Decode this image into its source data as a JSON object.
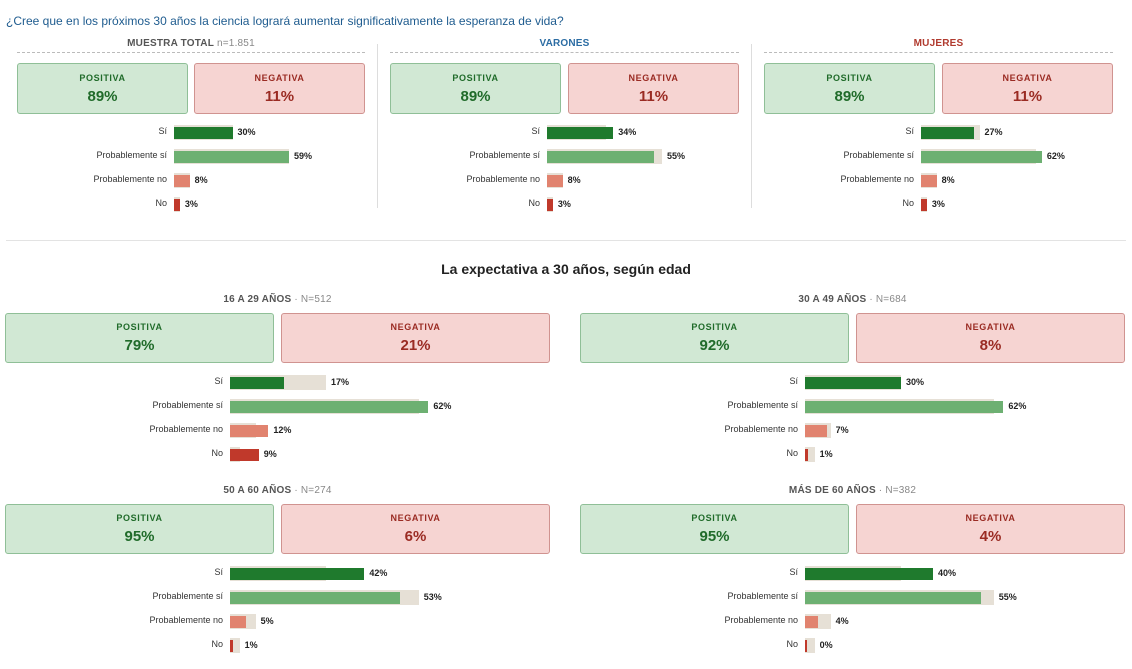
{
  "question": "¿Cree que en los próximos 30 años la ciencia logrará aumentar significativamente la esperanza de vida?",
  "section_title": "La expectativa a 30 años, según edad",
  "labels": {
    "positive": "POSITIVA",
    "negative": "NEGATIVA",
    "answers": [
      "Sí",
      "Probablemente sí",
      "Probablemente no",
      "No"
    ]
  },
  "colors": {
    "si": "#1f7a2d",
    "probablemente_si": "#6db072",
    "probablemente_no": "#e1836f",
    "no": "#c0392b",
    "reference_bar": "#e6e0d6",
    "question_text": "#1f5c8f"
  },
  "chart_data": [
    {
      "type": "bar",
      "title": "MUESTRA TOTAL",
      "n": "n=1.851",
      "title_color": "#555555",
      "summary": {
        "positive": "89%",
        "negative": "11%"
      },
      "categories": [
        "Sí",
        "Probablemente sí",
        "Probablemente no",
        "No"
      ],
      "values": [
        30,
        59,
        8,
        3
      ],
      "value_labels": [
        "30%",
        "59%",
        "8%",
        "3%"
      ],
      "reference_values": [
        30,
        59,
        8,
        3
      ]
    },
    {
      "type": "bar",
      "title": "VARONES",
      "n": "",
      "title_color": "#2b6ca3",
      "summary": {
        "positive": "89%",
        "negative": "11%"
      },
      "categories": [
        "Sí",
        "Probablemente sí",
        "Probablemente no",
        "No"
      ],
      "values": [
        34,
        55,
        8,
        3
      ],
      "value_labels": [
        "34%",
        "55%",
        "8%",
        "3%"
      ],
      "reference_values": [
        30,
        59,
        8,
        3
      ]
    },
    {
      "type": "bar",
      "title": "MUJERES",
      "n": "",
      "title_color": "#b03a2e",
      "summary": {
        "positive": "89%",
        "negative": "11%"
      },
      "categories": [
        "Sí",
        "Probablemente sí",
        "Probablemente no",
        "No"
      ],
      "values": [
        27,
        62,
        8,
        3
      ],
      "value_labels": [
        "27%",
        "62%",
        "8%",
        "3%"
      ],
      "reference_values": [
        30,
        59,
        8,
        3
      ]
    },
    {
      "type": "bar",
      "title": "16 A 29 AÑOS",
      "n": "N=512",
      "title_color": "#555555",
      "summary": {
        "positive": "79%",
        "negative": "21%"
      },
      "categories": [
        "Sí",
        "Probablemente sí",
        "Probablemente no",
        "No"
      ],
      "values": [
        17,
        62,
        12,
        9
      ],
      "value_labels": [
        "17%",
        "62%",
        "12%",
        "9%"
      ],
      "reference_values": [
        30,
        59,
        8,
        3
      ]
    },
    {
      "type": "bar",
      "title": "30 A 49 AÑOS",
      "n": "N=684",
      "title_color": "#555555",
      "summary": {
        "positive": "92%",
        "negative": "8%"
      },
      "categories": [
        "Sí",
        "Probablemente sí",
        "Probablemente no",
        "No"
      ],
      "values": [
        30,
        62,
        7,
        1
      ],
      "value_labels": [
        "30%",
        "62%",
        "7%",
        "1%"
      ],
      "reference_values": [
        30,
        59,
        8,
        3
      ]
    },
    {
      "type": "bar",
      "title": "50 A 60 AÑOS",
      "n": "N=274",
      "title_color": "#555555",
      "summary": {
        "positive": "95%",
        "negative": "6%"
      },
      "categories": [
        "Sí",
        "Probablemente sí",
        "Probablemente no",
        "No"
      ],
      "values": [
        42,
        53,
        5,
        1
      ],
      "value_labels": [
        "42%",
        "53%",
        "5%",
        "1%"
      ],
      "reference_values": [
        30,
        59,
        8,
        3
      ]
    },
    {
      "type": "bar",
      "title": "MÁS DE 60 AÑOS",
      "n": "N=382",
      "title_color": "#555555",
      "summary": {
        "positive": "95%",
        "negative": "4%"
      },
      "categories": [
        "Sí",
        "Probablemente sí",
        "Probablemente no",
        "No"
      ],
      "values": [
        40,
        55,
        4,
        0
      ],
      "value_labels": [
        "40%",
        "55%",
        "4%",
        "0%"
      ],
      "reference_values": [
        30,
        59,
        8,
        3
      ]
    }
  ]
}
